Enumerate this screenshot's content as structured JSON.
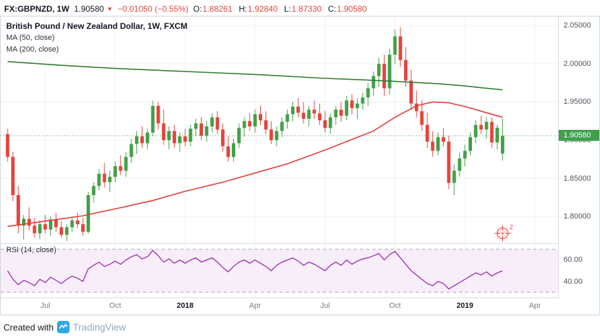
{
  "header": {
    "symbol": "FX:GBPNZD, 1W",
    "last_price": "1.90580",
    "direction_arrow": "▼",
    "change": "−0.01050 (−0.55%)",
    "ohlc": [
      {
        "k": "O:",
        "v": "1.88261"
      },
      {
        "k": "H:",
        "v": "1.92840"
      },
      {
        "k": "L:",
        "v": "1.87330"
      },
      {
        "k": "C:",
        "v": "1.90580"
      }
    ]
  },
  "legend": {
    "title": "British Pound / New Zealand Dollar, 1W, FXCM",
    "ma50": "MA (50, close)",
    "ma200": "MA (200, close)"
  },
  "rsi_pane": {
    "label": "RSI (14, close)"
  },
  "footer": {
    "created_with": "Created with",
    "brand": "TradingView",
    "logo_color": "#31a8e0"
  },
  "chart_data": {
    "type": "candlestick",
    "symbol": "FX:GBPNZD",
    "timeframe": "1W",
    "title": "British Pound / New Zealand Dollar, 1W, FXCM",
    "price_range": [
      1.765,
      2.062
    ],
    "last_price": 1.9058,
    "last_price_label": "1.90580",
    "price_axis": [
      {
        "label": "2.05000",
        "value": 2.05
      },
      {
        "label": "2.00000",
        "value": 2.0
      },
      {
        "label": "1.95000",
        "value": 1.95
      },
      {
        "label": "1.90000",
        "value": 1.9
      },
      {
        "label": "1.85000",
        "value": 1.85
      },
      {
        "label": "1.80000",
        "value": 1.8
      }
    ],
    "x_labels": [
      {
        "label": "Jul",
        "week": 7,
        "major": false
      },
      {
        "label": "Oct",
        "week": 20,
        "major": false
      },
      {
        "label": "2018",
        "week": 33,
        "major": true
      },
      {
        "label": "Apr",
        "week": 46,
        "major": false
      },
      {
        "label": "Jul",
        "week": 59,
        "major": false
      },
      {
        "label": "Oct",
        "week": 72,
        "major": false
      },
      {
        "label": "2019",
        "week": 85,
        "major": true
      },
      {
        "label": "Apr",
        "week": 98,
        "major": false
      }
    ],
    "candles": [
      [
        1.908,
        1.915,
        1.872,
        1.878
      ],
      [
        1.878,
        1.885,
        1.82,
        1.828
      ],
      [
        1.828,
        1.84,
        1.778,
        1.788
      ],
      [
        1.788,
        1.802,
        1.77,
        1.797
      ],
      [
        1.797,
        1.812,
        1.782,
        1.788
      ],
      [
        1.788,
        1.798,
        1.772,
        1.778
      ],
      [
        1.778,
        1.795,
        1.77,
        1.79
      ],
      [
        1.79,
        1.802,
        1.778,
        1.783
      ],
      [
        1.783,
        1.8,
        1.775,
        1.796
      ],
      [
        1.796,
        1.805,
        1.78,
        1.786
      ],
      [
        1.786,
        1.794,
        1.772,
        1.776
      ],
      [
        1.776,
        1.79,
        1.768,
        1.786
      ],
      [
        1.786,
        1.8,
        1.78,
        1.795
      ],
      [
        1.795,
        1.805,
        1.785,
        1.79
      ],
      [
        1.79,
        1.798,
        1.775,
        1.78
      ],
      [
        1.78,
        1.832,
        1.778,
        1.828
      ],
      [
        1.828,
        1.845,
        1.818,
        1.84
      ],
      [
        1.84,
        1.862,
        1.834,
        1.856
      ],
      [
        1.856,
        1.87,
        1.838,
        1.845
      ],
      [
        1.845,
        1.86,
        1.832,
        1.852
      ],
      [
        1.852,
        1.872,
        1.845,
        1.866
      ],
      [
        1.866,
        1.88,
        1.854,
        1.86
      ],
      [
        1.86,
        1.885,
        1.852,
        1.878
      ],
      [
        1.878,
        1.902,
        1.87,
        1.895
      ],
      [
        1.895,
        1.912,
        1.882,
        1.905
      ],
      [
        1.905,
        1.918,
        1.89,
        1.896
      ],
      [
        1.896,
        1.915,
        1.888,
        1.91
      ],
      [
        1.91,
        1.952,
        1.905,
        1.945
      ],
      [
        1.945,
        1.95,
        1.914,
        1.922
      ],
      [
        1.922,
        1.94,
        1.894,
        1.9
      ],
      [
        1.9,
        1.918,
        1.888,
        1.912
      ],
      [
        1.912,
        1.92,
        1.89,
        1.896
      ],
      [
        1.896,
        1.91,
        1.885,
        1.905
      ],
      [
        1.905,
        1.915,
        1.892,
        1.898
      ],
      [
        1.898,
        1.92,
        1.892,
        1.915
      ],
      [
        1.915,
        1.928,
        1.905,
        1.922
      ],
      [
        1.922,
        1.93,
        1.9,
        1.906
      ],
      [
        1.906,
        1.925,
        1.898,
        1.918
      ],
      [
        1.918,
        1.935,
        1.91,
        1.93
      ],
      [
        1.93,
        1.938,
        1.908,
        1.914
      ],
      [
        1.914,
        1.922,
        1.885,
        1.892
      ],
      [
        1.892,
        1.905,
        1.872,
        1.878
      ],
      [
        1.878,
        1.902,
        1.872,
        1.896
      ],
      [
        1.896,
        1.922,
        1.89,
        1.916
      ],
      [
        1.916,
        1.93,
        1.905,
        1.925
      ],
      [
        1.925,
        1.935,
        1.912,
        1.918
      ],
      [
        1.918,
        1.94,
        1.91,
        1.934
      ],
      [
        1.934,
        1.945,
        1.92,
        1.926
      ],
      [
        1.926,
        1.938,
        1.908,
        1.914
      ],
      [
        1.914,
        1.925,
        1.895,
        1.9
      ],
      [
        1.9,
        1.918,
        1.892,
        1.912
      ],
      [
        1.912,
        1.93,
        1.904,
        1.924
      ],
      [
        1.924,
        1.94,
        1.915,
        1.934
      ],
      [
        1.934,
        1.95,
        1.925,
        1.944
      ],
      [
        1.944,
        1.955,
        1.93,
        1.936
      ],
      [
        1.936,
        1.95,
        1.922,
        1.928
      ],
      [
        1.928,
        1.945,
        1.918,
        1.94
      ],
      [
        1.94,
        1.952,
        1.928,
        1.935
      ],
      [
        1.935,
        1.948,
        1.92,
        1.926
      ],
      [
        1.926,
        1.938,
        1.91,
        1.916
      ],
      [
        1.916,
        1.935,
        1.908,
        1.93
      ],
      [
        1.93,
        1.945,
        1.92,
        1.94
      ],
      [
        1.94,
        1.95,
        1.924,
        1.932
      ],
      [
        1.932,
        1.958,
        1.926,
        1.952
      ],
      [
        1.952,
        1.96,
        1.934,
        1.942
      ],
      [
        1.942,
        1.955,
        1.928,
        1.948
      ],
      [
        1.948,
        1.962,
        1.94,
        1.956
      ],
      [
        1.956,
        1.975,
        1.945,
        1.968
      ],
      [
        1.968,
        1.99,
        1.958,
        1.984
      ],
      [
        1.984,
        2.008,
        1.97,
        2.0
      ],
      [
        2.0,
        2.012,
        1.958,
        1.968
      ],
      [
        1.968,
        2.02,
        1.96,
        2.012
      ],
      [
        2.012,
        2.045,
        2.0,
        2.036
      ],
      [
        2.036,
        2.048,
        1.996,
        2.005
      ],
      [
        2.005,
        2.022,
        1.97,
        1.978
      ],
      [
        1.978,
        1.992,
        1.94,
        1.948
      ],
      [
        1.948,
        1.965,
        1.93,
        1.938
      ],
      [
        1.938,
        1.952,
        1.912,
        1.92
      ],
      [
        1.92,
        1.936,
        1.89,
        1.898
      ],
      [
        1.898,
        1.912,
        1.878,
        1.886
      ],
      [
        1.886,
        1.91,
        1.88,
        1.904
      ],
      [
        1.904,
        1.916,
        1.892,
        1.898
      ],
      [
        1.898,
        1.906,
        1.836,
        1.844
      ],
      [
        1.844,
        1.868,
        1.828,
        1.86
      ],
      [
        1.86,
        1.884,
        1.852,
        1.876
      ],
      [
        1.876,
        1.894,
        1.866,
        1.886
      ],
      [
        1.886,
        1.91,
        1.88,
        1.904
      ],
      [
        1.904,
        1.926,
        1.896,
        1.92
      ],
      [
        1.92,
        1.932,
        1.908,
        1.914
      ],
      [
        1.914,
        1.93,
        1.902,
        1.924
      ],
      [
        1.924,
        1.93,
        1.89,
        1.897
      ],
      [
        1.897,
        1.92,
        1.888,
        1.9163
      ],
      [
        1.88261,
        1.9284,
        1.8733,
        1.9058
      ]
    ],
    "ma50_points": [
      [
        0,
        1.787
      ],
      [
        7,
        1.794
      ],
      [
        14,
        1.801
      ],
      [
        20,
        1.81
      ],
      [
        27,
        1.821
      ],
      [
        33,
        1.833
      ],
      [
        40,
        1.845
      ],
      [
        46,
        1.857
      ],
      [
        52,
        1.869
      ],
      [
        59,
        1.887
      ],
      [
        64,
        1.901
      ],
      [
        68,
        1.912
      ],
      [
        72,
        1.93
      ],
      [
        76,
        1.945
      ],
      [
        79,
        1.95
      ],
      [
        82,
        1.949
      ],
      [
        85,
        1.944
      ],
      [
        88,
        1.938
      ],
      [
        92,
        1.93
      ]
    ],
    "ma200_points": [
      [
        0,
        2.003
      ],
      [
        10,
        1.998
      ],
      [
        20,
        1.994
      ],
      [
        33,
        1.99
      ],
      [
        46,
        1.986
      ],
      [
        59,
        1.981
      ],
      [
        66,
        1.979
      ],
      [
        72,
        1.977
      ],
      [
        80,
        1.974
      ],
      [
        85,
        1.971
      ],
      [
        89,
        1.968
      ],
      [
        92,
        1.966
      ]
    ],
    "rsi": {
      "period": 14,
      "range": [
        25,
        75
      ],
      "bands": [
        30,
        70
      ],
      "axis_ticks": [
        60,
        40
      ],
      "axis_labels": [
        "60.00",
        "40.00"
      ],
      "values": [
        50,
        42,
        37,
        41,
        39,
        36,
        42,
        39,
        44,
        41,
        38,
        42,
        45,
        43,
        40,
        52,
        55,
        58,
        54,
        56,
        59,
        56,
        60,
        63,
        65,
        61,
        63,
        69,
        64,
        58,
        61,
        57,
        60,
        57,
        60,
        62,
        58,
        60,
        62,
        58,
        53,
        49,
        54,
        58,
        60,
        57,
        60,
        57,
        54,
        50,
        55,
        58,
        60,
        62,
        59,
        55,
        58,
        56,
        53,
        50,
        55,
        58,
        55,
        60,
        56,
        59,
        61,
        62,
        64,
        66,
        60,
        65,
        68,
        62,
        56,
        50,
        46,
        42,
        38,
        36,
        40,
        38,
        33,
        36,
        39,
        42,
        45,
        48,
        46,
        49,
        45,
        48,
        50
      ]
    },
    "annotation": {
      "week": 92,
      "price": 1.778,
      "label": "2"
    },
    "colors": {
      "up": "#43a047",
      "down": "#e5443d",
      "ma50": "#e53935",
      "ma200": "#2f7d32",
      "grid": "#eef0f3",
      "badge": "#3fa04c",
      "rsi": "#9c27b0",
      "rsi_band": "#f7eef9",
      "band_line": "#a7aab4"
    }
  }
}
